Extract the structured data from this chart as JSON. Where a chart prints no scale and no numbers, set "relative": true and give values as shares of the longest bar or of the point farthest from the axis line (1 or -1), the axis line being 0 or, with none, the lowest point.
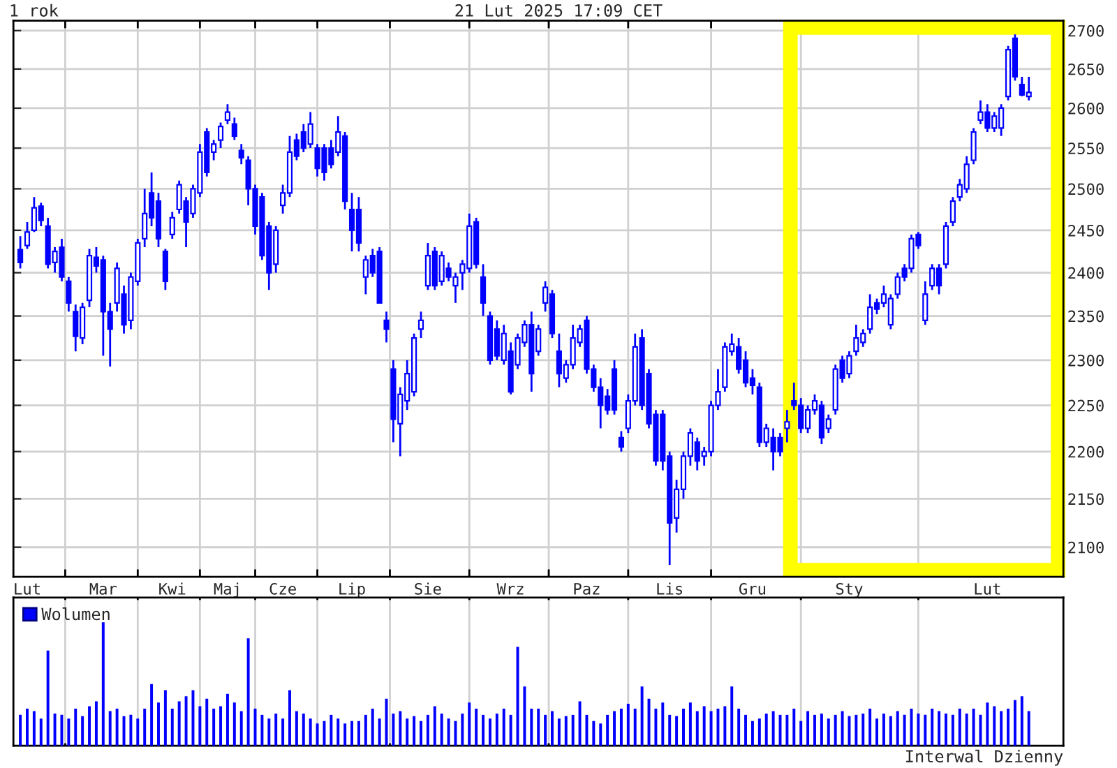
{
  "chart_data": [
    {
      "type": "candlestick",
      "title": "1 rok",
      "color": "#0000ff",
      "log": true,
      "grid": true,
      "annotations": [
        "21 Lut 2025 17:09 CET"
      ],
      "ylim": [
        2070,
        2713
      ],
      "yticks": [
        2100,
        2150,
        2200,
        2250,
        2300,
        2350,
        2400,
        2450,
        2500,
        2550,
        2600,
        2650,
        2700
      ],
      "categories": [
        null,
        "Lut",
        null,
        null,
        null,
        null,
        null,
        null,
        null,
        null,
        null,
        null,
        "Mar",
        null,
        null,
        null,
        null,
        null,
        null,
        null,
        null,
        null,
        "Kwi",
        null,
        null,
        null,
        null,
        null,
        null,
        null,
        "Maj",
        null,
        null,
        null,
        null,
        null,
        null,
        null,
        "Cze",
        null,
        null,
        null,
        null,
        null,
        null,
        null,
        null,
        null,
        "Lip",
        null,
        null,
        null,
        null,
        null,
        null,
        null,
        null,
        null,
        null,
        "Sie",
        null,
        null,
        null,
        null,
        null,
        null,
        null,
        null,
        null,
        null,
        null,
        "Wrz",
        null,
        null,
        null,
        null,
        null,
        null,
        null,
        null,
        null,
        null,
        "Paz",
        null,
        null,
        null,
        null,
        null,
        null,
        null,
        null,
        null,
        null,
        null,
        "Lis",
        null,
        null,
        null,
        null,
        null,
        null,
        null,
        null,
        null,
        null,
        null,
        "Gru",
        null,
        null,
        null,
        null,
        null,
        null,
        null,
        null,
        null,
        null,
        null,
        null,
        null,
        "Sty",
        null,
        null,
        null,
        null,
        null,
        null,
        null,
        null,
        null,
        null,
        null,
        null,
        null,
        null,
        null,
        null,
        null,
        null,
        null,
        "Lut",
        null,
        null,
        null,
        null,
        null,
        null
      ],
      "ohlc": [
        [
          2427,
          2443,
          2405,
          2412
        ],
        [
          2432,
          2460,
          2428,
          2448
        ],
        [
          2450,
          2490,
          2448,
          2477
        ],
        [
          2479,
          2483,
          2455,
          2462
        ],
        [
          2455,
          2465,
          2405,
          2410
        ],
        [
          2412,
          2430,
          2400,
          2425
        ],
        [
          2430,
          2440,
          2390,
          2395
        ],
        [
          2390,
          2395,
          2355,
          2365
        ],
        [
          2355,
          2363,
          2310,
          2327
        ],
        [
          2325,
          2365,
          2318,
          2360
        ],
        [
          2368,
          2428,
          2360,
          2420
        ],
        [
          2418,
          2430,
          2400,
          2408
        ],
        [
          2415,
          2420,
          2305,
          2355
        ],
        [
          2355,
          2365,
          2293,
          2335
        ],
        [
          2365,
          2412,
          2355,
          2405
        ],
        [
          2375,
          2385,
          2330,
          2340
        ],
        [
          2345,
          2400,
          2335,
          2395
        ],
        [
          2390,
          2440,
          2385,
          2435
        ],
        [
          2440,
          2500,
          2430,
          2470
        ],
        [
          2495,
          2520,
          2455,
          2465
        ],
        [
          2485,
          2495,
          2430,
          2440
        ],
        [
          2425,
          2428,
          2380,
          2390
        ],
        [
          2445,
          2472,
          2440,
          2465
        ],
        [
          2475,
          2510,
          2470,
          2505
        ],
        [
          2485,
          2490,
          2430,
          2460
        ],
        [
          2470,
          2505,
          2465,
          2500
        ],
        [
          2495,
          2555,
          2490,
          2545
        ],
        [
          2570,
          2575,
          2515,
          2520
        ],
        [
          2545,
          2560,
          2535,
          2555
        ],
        [
          2560,
          2582,
          2550,
          2577
        ],
        [
          2585,
          2605,
          2580,
          2595
        ],
        [
          2580,
          2588,
          2560,
          2565
        ],
        [
          2547,
          2555,
          2530,
          2538
        ],
        [
          2535,
          2540,
          2480,
          2500
        ],
        [
          2500,
          2505,
          2445,
          2455
        ],
        [
          2490,
          2495,
          2415,
          2420
        ],
        [
          2455,
          2460,
          2380,
          2400
        ],
        [
          2410,
          2455,
          2400,
          2450
        ],
        [
          2480,
          2505,
          2470,
          2495
        ],
        [
          2495,
          2565,
          2490,
          2545
        ],
        [
          2560,
          2568,
          2535,
          2540
        ],
        [
          2570,
          2580,
          2545,
          2550
        ],
        [
          2555,
          2595,
          2550,
          2580
        ],
        [
          2550,
          2555,
          2515,
          2525
        ],
        [
          2550,
          2555,
          2510,
          2520
        ],
        [
          2550,
          2560,
          2525,
          2530
        ],
        [
          2545,
          2590,
          2540,
          2570
        ],
        [
          2565,
          2570,
          2475,
          2485
        ],
        [
          2475,
          2495,
          2425,
          2450
        ],
        [
          2475,
          2490,
          2425,
          2435
        ],
        [
          2395,
          2420,
          2375,
          2415
        ],
        [
          2420,
          2428,
          2395,
          2400
        ],
        [
          2425,
          2430,
          2365,
          2365
        ],
        [
          2345,
          2355,
          2320,
          2335
        ],
        [
          2290,
          2300,
          2210,
          2235
        ],
        [
          2230,
          2270,
          2195,
          2262
        ],
        [
          2255,
          2300,
          2245,
          2285
        ],
        [
          2265,
          2330,
          2260,
          2325
        ],
        [
          2335,
          2355,
          2325,
          2345
        ],
        [
          2385,
          2435,
          2380,
          2420
        ],
        [
          2425,
          2430,
          2380,
          2385
        ],
        [
          2390,
          2425,
          2385,
          2420
        ],
        [
          2405,
          2412,
          2390,
          2395
        ],
        [
          2385,
          2400,
          2365,
          2395
        ],
        [
          2400,
          2415,
          2380,
          2410
        ],
        [
          2405,
          2470,
          2400,
          2455
        ],
        [
          2460,
          2465,
          2405,
          2410
        ],
        [
          2395,
          2410,
          2350,
          2365
        ],
        [
          2350,
          2355,
          2295,
          2300
        ],
        [
          2335,
          2345,
          2300,
          2305
        ],
        [
          2300,
          2340,
          2295,
          2330
        ],
        [
          2310,
          2320,
          2262,
          2265
        ],
        [
          2295,
          2330,
          2290,
          2325
        ],
        [
          2320,
          2345,
          2315,
          2340
        ],
        [
          2340,
          2355,
          2265,
          2285
        ],
        [
          2310,
          2340,
          2305,
          2335
        ],
        [
          2365,
          2390,
          2355,
          2383
        ],
        [
          2375,
          2380,
          2325,
          2330
        ],
        [
          2310,
          2330,
          2270,
          2285
        ],
        [
          2280,
          2300,
          2275,
          2295
        ],
        [
          2295,
          2340,
          2290,
          2325
        ],
        [
          2320,
          2340,
          2315,
          2335
        ],
        [
          2345,
          2350,
          2285,
          2290
        ],
        [
          2290,
          2295,
          2265,
          2270
        ],
        [
          2270,
          2280,
          2225,
          2250
        ],
        [
          2260,
          2268,
          2240,
          2245
        ],
        [
          2290,
          2300,
          2240,
          2245
        ],
        [
          2215,
          2222,
          2200,
          2205
        ],
        [
          2225,
          2262,
          2220,
          2255
        ],
        [
          2255,
          2330,
          2250,
          2315
        ],
        [
          2325,
          2335,
          2245,
          2250
        ],
        [
          2285,
          2290,
          2225,
          2230
        ],
        [
          2240,
          2245,
          2185,
          2190
        ],
        [
          2240,
          2245,
          2180,
          2190
        ],
        [
          2195,
          2200,
          2082,
          2125
        ],
        [
          2130,
          2170,
          2115,
          2160
        ],
        [
          2160,
          2200,
          2150,
          2195
        ],
        [
          2195,
          2225,
          2185,
          2220
        ],
        [
          2210,
          2215,
          2180,
          2190
        ],
        [
          2195,
          2205,
          2185,
          2200
        ],
        [
          2200,
          2255,
          2195,
          2250
        ],
        [
          2250,
          2290,
          2245,
          2265
        ],
        [
          2270,
          2320,
          2265,
          2315
        ],
        [
          2310,
          2330,
          2305,
          2318
        ],
        [
          2315,
          2325,
          2285,
          2290
        ],
        [
          2300,
          2310,
          2270,
          2275
        ],
        [
          2280,
          2290,
          2262,
          2272
        ],
        [
          2270,
          2275,
          2205,
          2210
        ],
        [
          2210,
          2230,
          2205,
          2225
        ],
        [
          2215,
          2225,
          2180,
          2200
        ],
        [
          2215,
          2220,
          2195,
          2200
        ],
        [
          2225,
          2245,
          2210,
          2232
        ],
        [
          2255,
          2275,
          2245,
          2250
        ],
        [
          2250,
          2258,
          2220,
          2225
        ],
        [
          2225,
          2250,
          2220,
          2245
        ],
        [
          2245,
          2262,
          2240,
          2255
        ],
        [
          2250,
          2255,
          2208,
          2215
        ],
        [
          2225,
          2240,
          2220,
          2235
        ],
        [
          2245,
          2295,
          2240,
          2290
        ],
        [
          2300,
          2305,
          2275,
          2280
        ],
        [
          2285,
          2310,
          2280,
          2305
        ],
        [
          2310,
          2340,
          2305,
          2325
        ],
        [
          2320,
          2335,
          2315,
          2330
        ],
        [
          2335,
          2375,
          2330,
          2360
        ],
        [
          2365,
          2370,
          2352,
          2358
        ],
        [
          2365,
          2385,
          2360,
          2375
        ],
        [
          2340,
          2375,
          2335,
          2370
        ],
        [
          2375,
          2400,
          2370,
          2395
        ],
        [
          2405,
          2410,
          2390,
          2395
        ],
        [
          2405,
          2445,
          2400,
          2440
        ],
        [
          2445,
          2448,
          2428,
          2432
        ],
        [
          2345,
          2390,
          2340,
          2375
        ],
        [
          2385,
          2410,
          2380,
          2405
        ],
        [
          2405,
          2410,
          2375,
          2385
        ],
        [
          2410,
          2460,
          2405,
          2455
        ],
        [
          2460,
          2490,
          2455,
          2485
        ],
        [
          2490,
          2512,
          2485,
          2505
        ],
        [
          2500,
          2540,
          2495,
          2530
        ],
        [
          2535,
          2575,
          2530,
          2570
        ],
        [
          2585,
          2610,
          2580,
          2595
        ],
        [
          2595,
          2605,
          2570,
          2575
        ],
        [
          2575,
          2595,
          2570,
          2590
        ],
        [
          2575,
          2605,
          2565,
          2600
        ],
        [
          2615,
          2680,
          2610,
          2675
        ],
        [
          2690,
          2695,
          2635,
          2640
        ],
        [
          2630,
          2640,
          2615,
          2617
        ],
        [
          2615,
          2640,
          2610,
          2620
        ]
      ]
    },
    {
      "type": "bar",
      "relative": true,
      "grid": "x",
      "legend": "top left",
      "annotations": [
        "Interwal Dzienny"
      ],
      "categories": [
        null,
        null,
        null,
        null,
        null,
        null,
        null,
        null,
        null,
        null,
        null,
        null,
        null,
        null,
        null,
        null,
        null,
        null,
        null,
        null,
        null,
        null,
        null,
        null,
        null,
        null,
        null,
        null,
        null,
        null,
        null,
        null,
        null,
        null,
        null,
        null,
        null,
        null,
        null,
        null,
        null,
        null,
        null,
        null,
        null,
        null,
        null,
        null,
        null,
        null,
        null,
        null,
        null,
        null,
        null,
        null,
        null,
        null,
        null,
        null,
        null,
        null,
        null,
        null,
        null,
        null,
        null,
        null,
        null,
        null,
        null,
        null,
        null,
        null,
        null,
        null,
        null,
        null,
        null,
        null,
        null,
        null,
        null,
        null,
        null,
        null,
        null,
        null,
        null,
        null,
        null,
        null,
        null,
        null,
        null,
        null,
        null,
        null,
        null,
        null,
        null,
        null,
        null,
        null,
        null,
        null,
        null,
        null,
        null,
        null,
        null,
        null,
        null,
        null,
        null,
        null,
        null,
        null,
        null,
        null,
        null,
        null,
        null,
        null,
        null,
        null,
        null,
        null,
        null,
        null,
        null,
        null,
        null,
        null,
        null,
        null,
        null,
        null,
        null,
        null,
        null,
        null,
        null,
        null,
        null,
        null,
        null
      ],
      "series": [
        {
          "name": "Wolumen",
          "color": "#0000ff",
          "values": [
            0.25,
            0.3,
            0.28,
            0.22,
            0.77,
            0.26,
            0.25,
            0.22,
            0.3,
            0.24,
            0.32,
            0.36,
            1.0,
            0.28,
            0.3,
            0.24,
            0.25,
            0.22,
            0.3,
            0.5,
            0.35,
            0.45,
            0.3,
            0.36,
            0.4,
            0.45,
            0.32,
            0.38,
            0.3,
            0.32,
            0.42,
            0.35,
            0.28,
            0.87,
            0.3,
            0.25,
            0.22,
            0.26,
            0.22,
            0.45,
            0.28,
            0.26,
            0.22,
            0.18,
            0.2,
            0.25,
            0.22,
            0.18,
            0.2,
            0.2,
            0.25,
            0.3,
            0.22,
            0.38,
            0.26,
            0.28,
            0.22,
            0.24,
            0.2,
            0.25,
            0.32,
            0.26,
            0.22,
            0.2,
            0.26,
            0.35,
            0.3,
            0.25,
            0.22,
            0.26,
            0.3,
            0.25,
            0.8,
            0.48,
            0.3,
            0.3,
            0.25,
            0.28,
            0.22,
            0.24,
            0.25,
            0.36,
            0.25,
            0.2,
            0.18,
            0.25,
            0.28,
            0.3,
            0.34,
            0.3,
            0.48,
            0.38,
            0.3,
            0.35,
            0.25,
            0.24,
            0.3,
            0.35,
            0.28,
            0.32,
            0.28,
            0.3,
            0.32,
            0.48,
            0.3,
            0.25,
            0.2,
            0.22,
            0.26,
            0.28,
            0.25,
            0.25,
            0.3,
            0.2,
            0.28,
            0.25,
            0.26,
            0.22,
            0.25,
            0.28,
            0.24,
            0.25,
            0.26,
            0.3,
            0.22,
            0.26,
            0.24,
            0.28,
            0.25,
            0.3,
            0.26,
            0.25,
            0.3,
            0.28,
            0.26,
            0.25,
            0.3,
            0.26,
            0.3,
            0.25,
            0.35,
            0.32,
            0.28,
            0.3,
            0.37,
            0.4,
            0.28
          ]
        }
      ]
    }
  ]
}
